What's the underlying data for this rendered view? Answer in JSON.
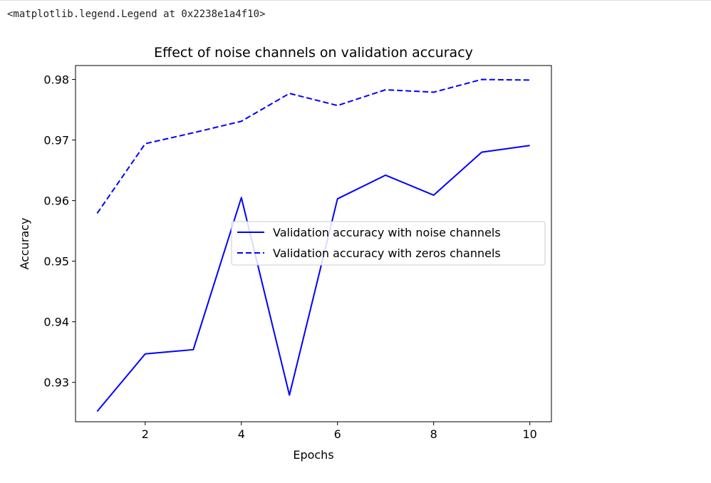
{
  "output": {
    "repr_text": "<matplotlib.legend.Legend at 0x2238e1a4f10>"
  },
  "colors": {
    "series": "#0000ff",
    "axis": "#000000",
    "text": "#000000",
    "legend_border": "#cccccc",
    "background": "#ffffff"
  },
  "chart_data": {
    "type": "line",
    "title": "Effect of noise channels on validation accuracy",
    "xlabel": "Epochs",
    "ylabel": "Accuracy",
    "xlim": [
      0.55,
      10.45
    ],
    "ylim": [
      0.9235,
      0.9823
    ],
    "xticks": [
      2,
      4,
      6,
      8,
      10
    ],
    "xtick_labels": [
      "2",
      "4",
      "6",
      "8",
      "10"
    ],
    "yticks": [
      0.93,
      0.94,
      0.95,
      0.96,
      0.97,
      0.98
    ],
    "ytick_labels": [
      "0.93",
      "0.94",
      "0.95",
      "0.96",
      "0.97",
      "0.98"
    ],
    "grid": false,
    "legend_position": "center-right",
    "x": [
      1,
      2,
      3,
      4,
      5,
      6,
      7,
      8,
      9,
      10
    ],
    "series": [
      {
        "name": "Validation accuracy with noise channels",
        "style": "solid",
        "values": [
          0.9252,
          0.9347,
          0.9354,
          0.9605,
          0.9279,
          0.9603,
          0.9642,
          0.9609,
          0.968,
          0.9691
        ]
      },
      {
        "name": "Validation accuracy with zeros channels",
        "style": "dashed",
        "values": [
          0.9579,
          0.9694,
          0.9712,
          0.9731,
          0.9777,
          0.9757,
          0.9783,
          0.9779,
          0.98,
          0.9799
        ]
      }
    ]
  }
}
